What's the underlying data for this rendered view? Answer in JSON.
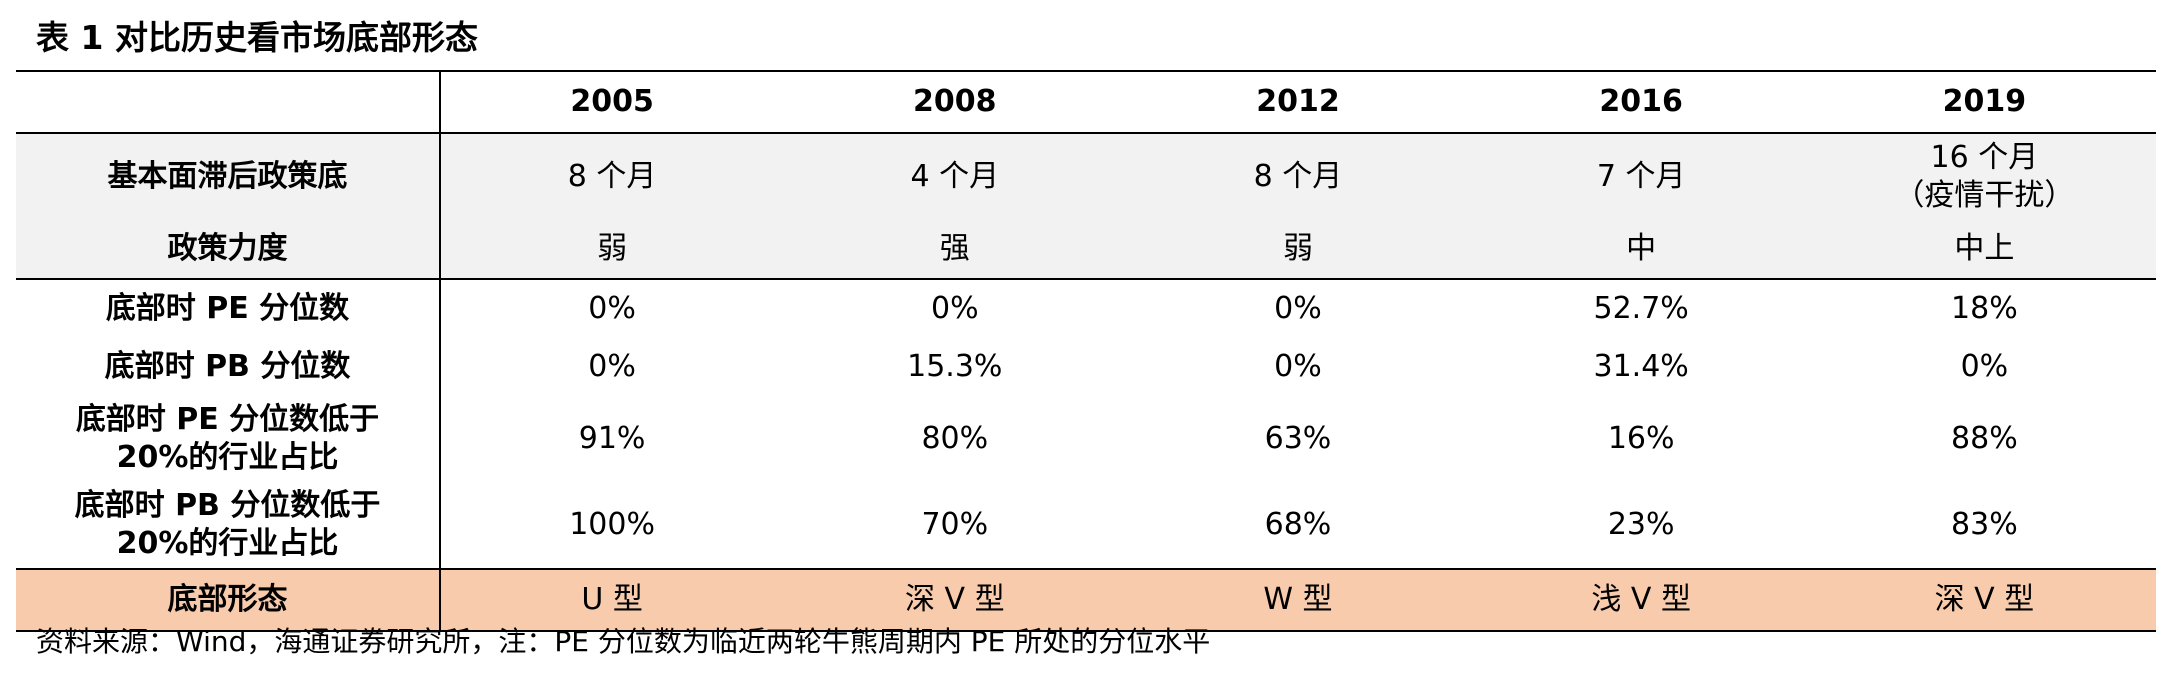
{
  "title": "表 1 对比历史看市场底部形态",
  "columns": [
    "",
    "2005",
    "2008",
    "2012",
    "2016",
    "2019"
  ],
  "rows": [
    {
      "label": [
        "基本面滞后政策底"
      ],
      "values": [
        [
          "8 个月"
        ],
        [
          "4 个月"
        ],
        [
          "8 个月"
        ],
        [
          "7 个月"
        ],
        [
          "16 个月",
          "（疫情干扰）"
        ]
      ]
    },
    {
      "label": [
        "政策力度"
      ],
      "values": [
        [
          "弱"
        ],
        [
          "强"
        ],
        [
          "弱"
        ],
        [
          "中"
        ],
        [
          "中上"
        ]
      ]
    },
    {
      "label": [
        "底部时 PE 分位数"
      ],
      "values": [
        [
          "0%"
        ],
        [
          "0%"
        ],
        [
          "0%"
        ],
        [
          "52.7%"
        ],
        [
          "18%"
        ]
      ]
    },
    {
      "label": [
        "底部时 PB 分位数"
      ],
      "values": [
        [
          "0%"
        ],
        [
          "15.3%"
        ],
        [
          "0%"
        ],
        [
          "31.4%"
        ],
        [
          "0%"
        ]
      ]
    },
    {
      "label": [
        "底部时 PE 分位数低于",
        "20%的行业占比"
      ],
      "values": [
        [
          "91%"
        ],
        [
          "80%"
        ],
        [
          "63%"
        ],
        [
          "16%"
        ],
        [
          "88%"
        ]
      ]
    },
    {
      "label": [
        "底部时 PB 分位数低于",
        "20%的行业占比"
      ],
      "values": [
        [
          "100%"
        ],
        [
          "70%"
        ],
        [
          "68%"
        ],
        [
          "23%"
        ],
        [
          "83%"
        ]
      ]
    },
    {
      "label": [
        "底部形态"
      ],
      "values": [
        [
          "U 型"
        ],
        [
          "深 V 型"
        ],
        [
          "W 型"
        ],
        [
          "浅 V 型"
        ],
        [
          "深 V 型"
        ]
      ]
    }
  ],
  "source": "资料来源：Wind，海通证券研究所，注：PE 分位数为临近两轮牛熊周期内 PE 所处的分位水平",
  "colors": {
    "header_band": "#f2f2f2",
    "shape_row": "#f8cbad",
    "border": "#000000"
  }
}
